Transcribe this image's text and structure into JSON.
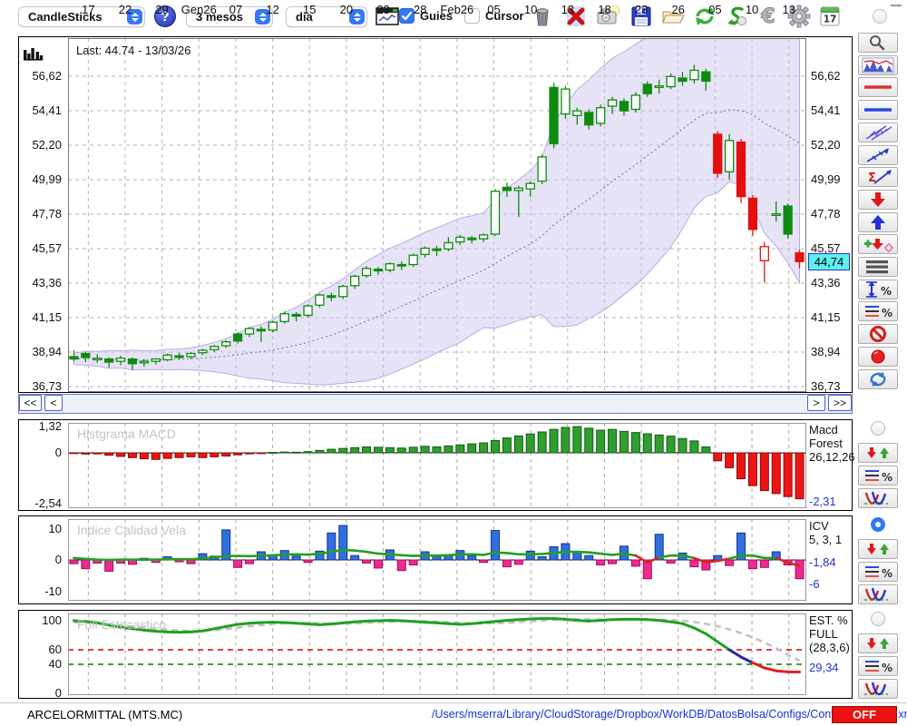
{
  "toolbar": {
    "chart_type": "CandleSticks",
    "help_label": "?",
    "period": "3 mesos",
    "interval": "dia",
    "guies_label": "Guies",
    "cursor_label": "Cursor",
    "guies_checked": true,
    "cursor_checked": false,
    "icons": [
      "mini-chart",
      "trash",
      "delete-x",
      "snapshot",
      "save",
      "open-folder",
      "refresh",
      "revert",
      "euro",
      "settings",
      "calendar-17"
    ]
  },
  "main_chart": {
    "last_label": "Last: 44.74 - 13/03/26",
    "price_tag": "44,74",
    "y_ticks": [
      "56,62",
      "54,41",
      "52,20",
      "49,99",
      "47,78",
      "45,57",
      "43,36",
      "41,15",
      "38,94",
      "36,73"
    ],
    "x_ticks": [
      "17",
      "22",
      "29",
      "Gen26",
      "07",
      "12",
      "15",
      "20",
      "23",
      "28",
      "Feb26",
      "05",
      "10",
      "13",
      "18",
      "23",
      "26",
      "05",
      "10",
      "13"
    ],
    "nav": {
      "first": "<<",
      "prev": "<",
      "next": ">",
      "last": ">>"
    }
  },
  "macd_panel": {
    "title": "Histgrama MACD",
    "y_ticks": [
      "1,32",
      "0",
      "-2,54"
    ],
    "right_lines": [
      "Macd",
      "Forest",
      "26,12,26"
    ],
    "value": "-2,31"
  },
  "icv_panel": {
    "title": "Indice Calidad Vela",
    "y_ticks": [
      "10",
      "0",
      "-10"
    ],
    "right_lines": [
      "ICV",
      "5, 3, 1"
    ],
    "value1": "-1,84",
    "value2": "-6"
  },
  "stoch_panel": {
    "title": "Full Estocastico",
    "y_ticks": [
      "100",
      "60",
      "40",
      "0"
    ],
    "right_lines": [
      "EST. %",
      "FULL",
      "(28,3,6)"
    ],
    "value": "29,34"
  },
  "panel_radios": {
    "macd": false,
    "icv": true,
    "stoch": false,
    "toolbar": false
  },
  "status_bar": {
    "symbol": "ARCELORMITTAL (MTS.MC)",
    "config_path": "/Users/mserra/Library/CloudStorage/Dropbox/WorkDB/DatosBolsa/Configs/Config.DEFAULT.xml",
    "off_label": "OFF"
  },
  "colors": {
    "candle_up": "#0f8c0f",
    "candle_down": "#e41010",
    "band_fill": "#cfc8f0",
    "band_edge": "#b6ade6",
    "macd_pos": "#2f9e2f",
    "macd_neg": "#ee1414",
    "icv_pos": "#2f6fe0",
    "icv_neg": "#ec2a90",
    "line_green": "#22a022",
    "line_navy": "#2a2a99",
    "line_red": "#dd2222",
    "dash_red": "#dd0000",
    "dash_green": "#0a7a0a",
    "value_blue": "#2233cc",
    "tag_cyan": "#5ef0f0",
    "off_red": "#ee1111"
  },
  "chart_data": [
    {
      "type": "candlestick",
      "title": "Last: 44.74 - 13/03/26",
      "ylabel": "price",
      "ylim": [
        36.73,
        56.62
      ],
      "y_tick_values": [
        56.62,
        54.41,
        52.2,
        49.99,
        47.78,
        45.57,
        43.36,
        41.15,
        38.94,
        36.73
      ],
      "x_tick_labels": [
        "17",
        "22",
        "29",
        "Gen26",
        "07",
        "12",
        "15",
        "20",
        "23",
        "28",
        "Feb26",
        "05",
        "10",
        "13",
        "18",
        "23",
        "26",
        "05",
        "10",
        "13"
      ],
      "overlay": "bollinger-band-with-sma",
      "last_close": 44.74,
      "last_date": "13/03/26",
      "ohlc": [
        [
          38.65,
          39.05,
          38.35,
          38.5,
          1,
          "g"
        ],
        [
          38.85,
          38.95,
          38.3,
          38.6,
          1,
          "g"
        ],
        [
          38.55,
          38.8,
          38.25,
          38.45,
          0,
          "g"
        ],
        [
          38.5,
          38.6,
          37.95,
          38.3,
          1,
          "g"
        ],
        [
          38.35,
          38.7,
          38.1,
          38.55,
          0,
          "g"
        ],
        [
          38.5,
          38.6,
          37.8,
          38.2,
          1,
          "g"
        ],
        [
          38.25,
          38.5,
          38.0,
          38.35,
          0,
          "g"
        ],
        [
          38.35,
          38.55,
          38.15,
          38.5,
          0,
          "g"
        ],
        [
          38.45,
          38.85,
          38.35,
          38.75,
          0,
          "g"
        ],
        [
          38.7,
          38.9,
          38.45,
          38.6,
          1,
          "g"
        ],
        [
          38.65,
          38.95,
          38.5,
          38.85,
          0,
          "g"
        ],
        [
          38.9,
          39.15,
          38.75,
          39.05,
          0,
          "g"
        ],
        [
          39.1,
          39.4,
          38.95,
          39.3,
          0,
          "g"
        ],
        [
          39.35,
          39.7,
          39.2,
          39.6,
          0,
          "g"
        ],
        [
          39.65,
          40.2,
          39.5,
          40.1,
          1,
          "g"
        ],
        [
          40.1,
          40.55,
          39.9,
          40.45,
          0,
          "g"
        ],
        [
          40.4,
          40.6,
          39.6,
          40.3,
          1,
          "g"
        ],
        [
          40.35,
          40.95,
          40.2,
          40.85,
          0,
          "g"
        ],
        [
          40.9,
          41.55,
          40.75,
          41.4,
          0,
          "g"
        ],
        [
          41.35,
          41.5,
          40.9,
          41.25,
          1,
          "g"
        ],
        [
          41.3,
          42.0,
          41.15,
          41.9,
          0,
          "g"
        ],
        [
          41.95,
          42.7,
          41.8,
          42.6,
          0,
          "g"
        ],
        [
          42.55,
          42.75,
          42.2,
          42.45,
          1,
          "g"
        ],
        [
          42.5,
          43.25,
          42.35,
          43.15,
          0,
          "g"
        ],
        [
          43.2,
          43.9,
          43.0,
          43.8,
          0,
          "g"
        ],
        [
          43.85,
          44.45,
          43.7,
          44.3,
          0,
          "g"
        ],
        [
          44.25,
          44.4,
          43.9,
          44.15,
          1,
          "g"
        ],
        [
          44.2,
          44.7,
          44.05,
          44.6,
          0,
          "g"
        ],
        [
          44.55,
          44.75,
          44.2,
          44.5,
          1,
          "g"
        ],
        [
          44.55,
          45.25,
          44.4,
          45.15,
          0,
          "g"
        ],
        [
          45.2,
          45.7,
          45.0,
          45.6,
          0,
          "g"
        ],
        [
          45.55,
          45.75,
          45.1,
          45.5,
          1,
          "g"
        ],
        [
          45.55,
          46.3,
          45.4,
          45.95,
          0,
          "g"
        ],
        [
          46.0,
          46.45,
          45.8,
          46.3,
          0,
          "g"
        ],
        [
          46.25,
          46.4,
          45.9,
          46.15,
          1,
          "g"
        ],
        [
          46.2,
          46.55,
          46.0,
          46.45,
          0,
          "g"
        ],
        [
          46.5,
          49.4,
          46.4,
          49.25,
          0,
          "g"
        ],
        [
          49.3,
          49.8,
          48.9,
          49.5,
          1,
          "g"
        ],
        [
          49.45,
          49.6,
          47.6,
          49.3,
          0,
          "g"
        ],
        [
          49.4,
          49.9,
          48.9,
          49.75,
          0,
          "g"
        ],
        [
          49.9,
          51.6,
          49.7,
          51.45,
          0,
          "g"
        ],
        [
          52.3,
          56.2,
          52.0,
          55.9,
          1,
          "g"
        ],
        [
          55.8,
          56.0,
          53.9,
          54.2,
          0,
          "g"
        ],
        [
          54.1,
          54.6,
          53.5,
          54.4,
          0,
          "g"
        ],
        [
          54.3,
          54.5,
          53.2,
          53.5,
          1,
          "g"
        ],
        [
          53.6,
          54.8,
          53.4,
          54.6,
          0,
          "g"
        ],
        [
          54.7,
          55.3,
          54.2,
          55.1,
          0,
          "g"
        ],
        [
          55.0,
          55.2,
          54.1,
          54.4,
          1,
          "g"
        ],
        [
          54.5,
          55.6,
          54.3,
          55.4,
          0,
          "g"
        ],
        [
          55.5,
          56.3,
          55.3,
          56.1,
          1,
          "g"
        ],
        [
          56.0,
          56.4,
          55.5,
          55.9,
          0,
          "g"
        ],
        [
          55.95,
          56.8,
          55.8,
          56.6,
          0,
          "g"
        ],
        [
          56.5,
          56.9,
          56.0,
          56.3,
          1,
          "g"
        ],
        [
          56.4,
          57.35,
          56.15,
          57.0,
          0,
          "g"
        ],
        [
          56.3,
          57.1,
          55.7,
          56.9,
          1,
          "g"
        ],
        [
          52.9,
          53.1,
          50.1,
          50.4,
          1,
          "r"
        ],
        [
          50.5,
          52.9,
          50.0,
          52.5,
          0,
          "g"
        ],
        [
          52.4,
          52.6,
          48.5,
          48.9,
          1,
          "r"
        ],
        [
          48.8,
          49.0,
          46.4,
          46.8,
          1,
          "r"
        ],
        [
          44.8,
          46.0,
          43.4,
          45.7,
          0,
          "r"
        ],
        [
          47.7,
          48.6,
          47.3,
          47.8,
          0,
          "g"
        ],
        [
          48.3,
          48.45,
          46.2,
          46.5,
          1,
          "g"
        ],
        [
          45.3,
          45.5,
          44.3,
          44.74,
          1,
          "r"
        ]
      ]
    },
    {
      "type": "bar",
      "name": "Histograma MACD",
      "params": "26,12,26",
      "ylim": [
        -2.54,
        1.32
      ],
      "last_value": -2.31,
      "values": [
        -0.03,
        -0.06,
        -0.05,
        -0.12,
        -0.18,
        -0.24,
        -0.3,
        -0.33,
        -0.28,
        -0.24,
        -0.2,
        -0.24,
        -0.2,
        -0.16,
        -0.1,
        -0.05,
        -0.02,
        0.02,
        0.04,
        0.03,
        0.06,
        0.12,
        0.18,
        0.22,
        0.26,
        0.3,
        0.28,
        0.26,
        0.24,
        0.28,
        0.33,
        0.3,
        0.35,
        0.4,
        0.45,
        0.5,
        0.62,
        0.75,
        0.85,
        0.95,
        1.05,
        1.18,
        1.28,
        1.32,
        1.24,
        1.14,
        1.18,
        1.08,
        1.02,
        0.96,
        0.9,
        0.84,
        0.72,
        0.6,
        0.3,
        -0.4,
        -0.75,
        -1.3,
        -1.65,
        -1.9,
        -2.05,
        -2.2,
        -2.31
      ]
    },
    {
      "type": "bar+line",
      "name": "Indice Calidad Vela",
      "params": "5, 3, 1",
      "ylim": [
        -12,
        12
      ],
      "last_line_value": -1.84,
      "last_bar_value": -6,
      "bars": [
        -1.2,
        -2.8,
        -1.0,
        -3.6,
        -1.0,
        -1.4,
        0.5,
        -0.8,
        1.0,
        -0.6,
        -1.2,
        2.0,
        1.2,
        9.6,
        -2.4,
        -1.2,
        2.6,
        1.4,
        3.0,
        1.2,
        -0.8,
        2.8,
        8.6,
        11.0,
        1.4,
        -1.0,
        -2.6,
        3.2,
        -3.4,
        -1.6,
        2.6,
        1.2,
        1.6,
        3.0,
        1.4,
        -0.8,
        9.4,
        -2.2,
        -1.4,
        2.8,
        1.0,
        4.2,
        5.2,
        2.4,
        1.4,
        -1.6,
        -1.2,
        4.4,
        -2.0,
        -6.0,
        8.2,
        -1.0,
        2.2,
        -2.2,
        -3.2,
        1.4,
        -1.8,
        8.6,
        -2.8,
        -2.4,
        2.6,
        -1.6,
        -6.0
      ],
      "line": [
        0.6,
        0.3,
        0.1,
        0.0,
        0.1,
        0.1,
        0.1,
        0.1,
        0.2,
        0.2,
        0.2,
        0.5,
        0.8,
        1.2,
        1.3,
        1.2,
        1.3,
        1.5,
        1.7,
        1.8,
        1.7,
        2.0,
        2.6,
        3.2,
        3.0,
        2.6,
        2.0,
        1.8,
        1.5,
        1.3,
        1.4,
        1.4,
        1.5,
        1.8,
        1.8,
        1.6,
        2.4,
        2.2,
        1.8,
        1.8,
        1.9,
        2.2,
        2.6,
        2.6,
        2.4,
        2.0,
        1.6,
        2.0,
        1.4,
        -0.8,
        0.8,
        1.4,
        1.4,
        0.6,
        -0.8,
        -0.3,
        0.4,
        1.4,
        1.4,
        0.6,
        0.6,
        -0.9,
        -1.84
      ]
    },
    {
      "type": "line",
      "name": "Full Stochastic",
      "params": "(28,3,6)",
      "ylim": [
        0,
        100
      ],
      "thresholds": [
        60,
        40
      ],
      "last_value": 29.34,
      "k": [
        100,
        99,
        97,
        94,
        91,
        89,
        87,
        85.5,
        84.5,
        84,
        84.5,
        86,
        89,
        92,
        95,
        96.5,
        97.5,
        98,
        97.5,
        96.5,
        95.5,
        94.5,
        95.5,
        97,
        98.5,
        99.5,
        100,
        100.5,
        100,
        99,
        98,
        97,
        96,
        95,
        96,
        97.5,
        99,
        100.5,
        101.5,
        102.5,
        103,
        103,
        102,
        100.5,
        99.5,
        100.5,
        101.5,
        102,
        102,
        101.5,
        100.5,
        98.5,
        96,
        90,
        82,
        71,
        60,
        50,
        42,
        35,
        31,
        29.5,
        29.34
      ],
      "d": [
        98,
        97.5,
        96.5,
        95,
        93.5,
        92,
        90.5,
        89,
        87.5,
        86.5,
        86,
        86,
        87,
        88.5,
        90.5,
        92.5,
        94,
        95.5,
        96.5,
        97,
        96.8,
        96.3,
        95.8,
        95.8,
        96.3,
        97,
        98,
        98.8,
        99.3,
        99.5,
        99.2,
        98.7,
        98,
        97.2,
        96.5,
        96.2,
        96.5,
        97.2,
        98.2,
        99.3,
        100.3,
        101.3,
        102,
        102.2,
        102,
        101.6,
        101.3,
        101.3,
        101.5,
        101.6,
        101.5,
        101,
        100,
        98.3,
        95.8,
        92.3,
        88,
        83,
        77,
        70,
        62,
        53,
        45
      ]
    }
  ],
  "sidebar_icons": [
    "zoom",
    "indicator-chart",
    "red-hline",
    "blue-hline",
    "channel",
    "trendline",
    "sigma-trendline",
    "arrow-down-red",
    "arrow-up-blue",
    "add-signal",
    "list-lines",
    "vertical-measure-percent",
    "lines-percent",
    "forbidden",
    "record",
    "swap-refresh"
  ]
}
